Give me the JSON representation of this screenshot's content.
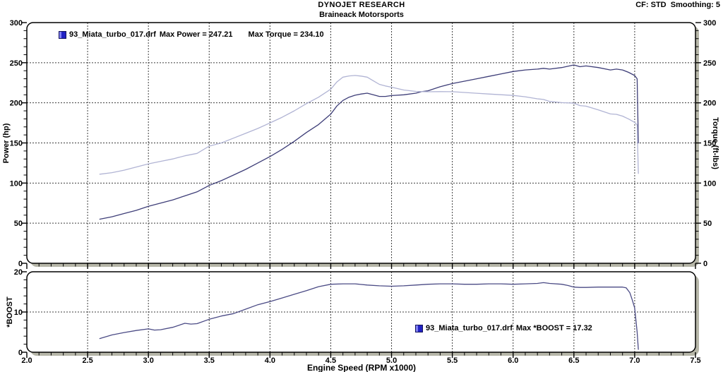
{
  "header": {
    "title": "DYNOJET RESEARCH",
    "subtitle": "Braineack Motorsports",
    "settings": "CF: STD  Smoothing: 5"
  },
  "x_axis": {
    "label": "Engine Speed (RPM x1000)",
    "tick_labels": [
      "2.0",
      "2.5",
      "3.0",
      "3.5",
      "4.0",
      "4.5",
      "5.0",
      "5.5",
      "6.0",
      "6.5",
      "7.0",
      "7.5"
    ],
    "range": [
      2.0,
      7.5
    ]
  },
  "main_chart": {
    "y_left_label": "Power (hp)",
    "y_right_label": "Torque (ft-lbs)",
    "legend": {
      "file": "93_Miata_turbo_017.drf",
      "max_power": "Max Power = 247.21",
      "max_torque": "Max Torque = 234.10"
    }
  },
  "boost_chart": {
    "y_label": "*BOOST",
    "legend": {
      "file": "93_Miata_turbo_017.drf",
      "max_boost": "Max *BOOST = 17.32"
    }
  },
  "colors": {
    "shadow": "#b6b6a8",
    "grid": "#3c3c3c",
    "border": "#000000",
    "power": "#3e3e78",
    "torque": "#b1b4d4",
    "boost": "#4b4b85",
    "legend_marker": "#2222c4"
  },
  "chart_data": [
    {
      "type": "line",
      "title": "Power and Torque vs Engine Speed",
      "xlabel": "Engine Speed (RPM x1000)",
      "xlim": [
        2.0,
        7.5
      ],
      "x_major_tick": 0.5,
      "x_minor_tick": 0.1,
      "ylim": [
        0,
        300
      ],
      "y_major_tick": 50,
      "y_minor_tick": 10,
      "y_tick_labels": [
        "0",
        "50",
        "100",
        "150",
        "200",
        "250",
        "300"
      ],
      "ylabel_left": "Power (hp)",
      "ylabel_right": "Torque (ft-lbs)",
      "grid": true,
      "legend_position": "top-left",
      "series": [
        {
          "id": "power-curve",
          "name": "Power (hp)",
          "file": "93_Miata_turbo_017.drf",
          "max": 247.21,
          "color": "#3e3e78",
          "points": [
            [
              2.6,
              55
            ],
            [
              2.7,
              58
            ],
            [
              2.8,
              62
            ],
            [
              2.9,
              66
            ],
            [
              3.0,
              71
            ],
            [
              3.1,
              75
            ],
            [
              3.2,
              79
            ],
            [
              3.3,
              84
            ],
            [
              3.4,
              89
            ],
            [
              3.5,
              97
            ],
            [
              3.6,
              103
            ],
            [
              3.7,
              110
            ],
            [
              3.8,
              117
            ],
            [
              3.9,
              125
            ],
            [
              4.0,
              133
            ],
            [
              4.1,
              142
            ],
            [
              4.2,
              152
            ],
            [
              4.3,
              163
            ],
            [
              4.4,
              173
            ],
            [
              4.5,
              186
            ],
            [
              4.55,
              196
            ],
            [
              4.6,
              203
            ],
            [
              4.65,
              207
            ],
            [
              4.7,
              209.5
            ],
            [
              4.75,
              211
            ],
            [
              4.8,
              212
            ],
            [
              4.85,
              210
            ],
            [
              4.9,
              208
            ],
            [
              4.95,
              208
            ],
            [
              5.0,
              209
            ],
            [
              5.1,
              210
            ],
            [
              5.2,
              212
            ],
            [
              5.25,
              214
            ],
            [
              5.3,
              215
            ],
            [
              5.4,
              220
            ],
            [
              5.5,
              224
            ],
            [
              5.6,
              227
            ],
            [
              5.7,
              230
            ],
            [
              5.8,
              233
            ],
            [
              5.9,
              236
            ],
            [
              6.0,
              239
            ],
            [
              6.1,
              241
            ],
            [
              6.2,
              242
            ],
            [
              6.25,
              243
            ],
            [
              6.3,
              242
            ],
            [
              6.4,
              244
            ],
            [
              6.5,
              247.2
            ],
            [
              6.55,
              245
            ],
            [
              6.6,
              246
            ],
            [
              6.7,
              244
            ],
            [
              6.8,
              241
            ],
            [
              6.85,
              242
            ],
            [
              6.9,
              241
            ],
            [
              6.95,
              238
            ],
            [
              7.0,
              234
            ],
            [
              7.02,
              230
            ],
            [
              7.03,
              150
            ]
          ]
        },
        {
          "id": "torque-curve",
          "name": "Torque (ft-lbs)",
          "file": "93_Miata_turbo_017.drf",
          "max": 234.1,
          "color": "#b1b4d4",
          "points": [
            [
              2.6,
              111
            ],
            [
              2.7,
              113
            ],
            [
              2.8,
              116
            ],
            [
              2.9,
              120
            ],
            [
              3.0,
              124
            ],
            [
              3.1,
              127
            ],
            [
              3.2,
              130
            ],
            [
              3.3,
              134
            ],
            [
              3.4,
              137
            ],
            [
              3.5,
              146
            ],
            [
              3.6,
              150
            ],
            [
              3.7,
              156
            ],
            [
              3.8,
              162
            ],
            [
              3.9,
              168
            ],
            [
              4.0,
              175
            ],
            [
              4.1,
              182
            ],
            [
              4.2,
              190
            ],
            [
              4.3,
              199
            ],
            [
              4.4,
              207
            ],
            [
              4.5,
              217
            ],
            [
              4.55,
              226
            ],
            [
              4.6,
              232
            ],
            [
              4.65,
              233.5
            ],
            [
              4.7,
              234.1
            ],
            [
              4.75,
              233.3
            ],
            [
              4.8,
              232
            ],
            [
              4.85,
              227.5
            ],
            [
              4.9,
              223
            ],
            [
              4.95,
              221
            ],
            [
              5.0,
              219.5
            ],
            [
              5.1,
              216
            ],
            [
              5.2,
              214.2
            ],
            [
              5.25,
              214
            ],
            [
              5.3,
              213.8
            ],
            [
              5.4,
              214
            ],
            [
              5.5,
              213.9
            ],
            [
              5.6,
              212.9
            ],
            [
              5.7,
              211.9
            ],
            [
              5.8,
              211
            ],
            [
              5.9,
              210.1
            ],
            [
              6.0,
              209.2
            ],
            [
              6.1,
              207.5
            ],
            [
              6.2,
              205
            ],
            [
              6.25,
              204.2
            ],
            [
              6.3,
              201.7
            ],
            [
              6.4,
              200.2
            ],
            [
              6.5,
              199.6
            ],
            [
              6.55,
              196.5
            ],
            [
              6.6,
              195.8
            ],
            [
              6.7,
              191.3
            ],
            [
              6.8,
              186.2
            ],
            [
              6.85,
              185.6
            ],
            [
              6.9,
              183.4
            ],
            [
              6.95,
              179.8
            ],
            [
              7.0,
              175.6
            ],
            [
              7.02,
              172.4
            ],
            [
              7.03,
              112
            ]
          ]
        }
      ]
    },
    {
      "type": "line",
      "title": "Boost vs Engine Speed",
      "xlabel": "Engine Speed (RPM x1000)",
      "xlim": [
        2.0,
        7.5
      ],
      "x_major_tick": 0.5,
      "x_minor_tick": 0.1,
      "ylim": [
        0,
        20
      ],
      "y_major_tick": 10,
      "y_minor_tick": 2,
      "y_tick_labels": [
        "0",
        "10",
        "20"
      ],
      "ylabel_left": "*BOOST",
      "grid": true,
      "legend_position": "bottom-center",
      "series": [
        {
          "id": "boost-curve",
          "name": "*BOOST",
          "file": "93_Miata_turbo_017.drf",
          "max": 17.32,
          "color": "#4b4b85",
          "points": [
            [
              2.6,
              3.4
            ],
            [
              2.7,
              4.3
            ],
            [
              2.8,
              4.9
            ],
            [
              2.9,
              5.4
            ],
            [
              3.0,
              5.8
            ],
            [
              3.05,
              5.5
            ],
            [
              3.1,
              5.6
            ],
            [
              3.2,
              6.2
            ],
            [
              3.3,
              7.2
            ],
            [
              3.35,
              7.0
            ],
            [
              3.4,
              7.1
            ],
            [
              3.5,
              8.2
            ],
            [
              3.6,
              9.0
            ],
            [
              3.7,
              9.6
            ],
            [
              3.8,
              10.7
            ],
            [
              3.9,
              11.8
            ],
            [
              4.0,
              12.6
            ],
            [
              4.1,
              13.5
            ],
            [
              4.2,
              14.4
            ],
            [
              4.3,
              15.3
            ],
            [
              4.4,
              16.3
            ],
            [
              4.5,
              16.9
            ],
            [
              4.6,
              17.0
            ],
            [
              4.7,
              17.0
            ],
            [
              4.8,
              16.7
            ],
            [
              4.9,
              16.5
            ],
            [
              5.0,
              16.4
            ],
            [
              5.1,
              16.5
            ],
            [
              5.2,
              16.7
            ],
            [
              5.3,
              16.9
            ],
            [
              5.4,
              17.0
            ],
            [
              5.5,
              17.0
            ],
            [
              5.6,
              16.9
            ],
            [
              5.7,
              16.9
            ],
            [
              5.8,
              17.0
            ],
            [
              5.9,
              17.0
            ],
            [
              6.0,
              16.9
            ],
            [
              6.1,
              17.0
            ],
            [
              6.2,
              17.1
            ],
            [
              6.25,
              17.3
            ],
            [
              6.3,
              17.1
            ],
            [
              6.4,
              16.9
            ],
            [
              6.45,
              16.6
            ],
            [
              6.5,
              16.2
            ],
            [
              6.55,
              16.1
            ],
            [
              6.6,
              16.1
            ],
            [
              6.7,
              16.2
            ],
            [
              6.8,
              16.2
            ],
            [
              6.9,
              16.2
            ],
            [
              6.93,
              16.0
            ],
            [
              6.96,
              14.8
            ],
            [
              6.98,
              13.0
            ],
            [
              7.0,
              11.0
            ],
            [
              7.02,
              5.0
            ],
            [
              7.03,
              0.7
            ]
          ]
        }
      ]
    }
  ]
}
